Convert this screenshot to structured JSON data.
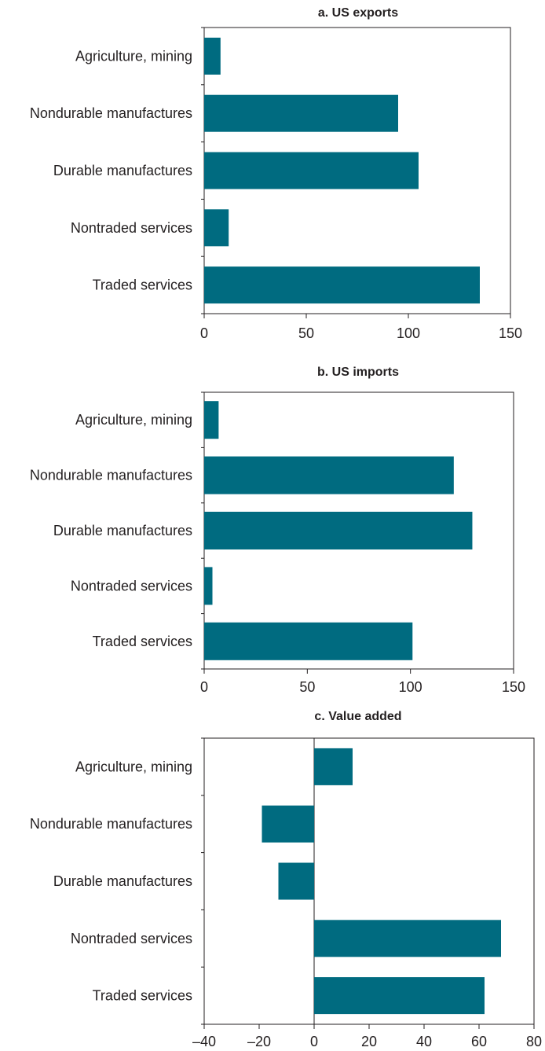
{
  "bar_color": "#006b80",
  "chart_data": [
    {
      "type": "bar",
      "orientation": "horizontal",
      "title": "a. US exports",
      "categories": [
        "Agriculture, mining",
        "Nondurable manufactures",
        "Durable manufactures",
        "Nontraded services",
        "Traded services"
      ],
      "values": [
        8,
        95,
        105,
        12,
        135
      ],
      "xlim": [
        0,
        150
      ],
      "xticks": [
        0,
        50,
        100,
        150
      ],
      "xtick_labels": [
        "0",
        "50",
        "100",
        "150"
      ]
    },
    {
      "type": "bar",
      "orientation": "horizontal",
      "title": "b. US imports",
      "categories": [
        "Agriculture, mining",
        "Nondurable manufactures",
        "Durable manufactures",
        "Nontraded services",
        "Traded services"
      ],
      "values": [
        7,
        121,
        130,
        4,
        101
      ],
      "xlim": [
        0,
        150
      ],
      "xticks": [
        0,
        50,
        100,
        150
      ],
      "xtick_labels": [
        "0",
        "50",
        "100",
        "150"
      ]
    },
    {
      "type": "bar",
      "orientation": "horizontal",
      "title": "c. Value added",
      "categories": [
        "Agriculture, mining",
        "Nondurable manufactures",
        "Durable manufactures",
        "Nontraded services",
        "Traded services"
      ],
      "values": [
        14,
        -19,
        -13,
        68,
        62
      ],
      "xlim": [
        -40,
        80
      ],
      "xticks": [
        -40,
        -20,
        0,
        20,
        40,
        60,
        80
      ],
      "xtick_labels": [
        "–40",
        "–20",
        "0",
        "20",
        "40",
        "60",
        "80"
      ]
    }
  ]
}
